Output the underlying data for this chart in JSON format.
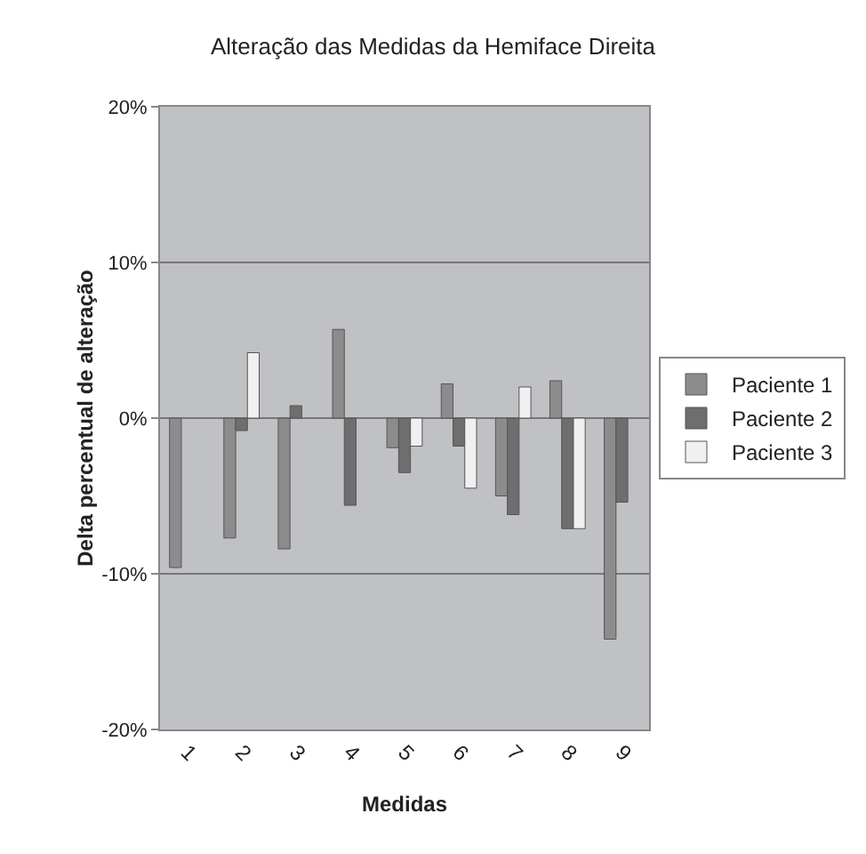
{
  "chart_data": {
    "type": "bar",
    "title": "Alteração das Medidas da Hemiface Direita",
    "xlabel": "Medidas",
    "ylabel": "Delta percentual de alteração",
    "categories": [
      "1",
      "2",
      "3",
      "4",
      "5",
      "6",
      "7",
      "8",
      "9"
    ],
    "series": [
      {
        "name": "Paciente 1",
        "color": "#8c8c8c",
        "values": [
          -9.6,
          -7.7,
          -8.4,
          5.7,
          -1.9,
          2.2,
          -5.0,
          2.4,
          -14.2
        ]
      },
      {
        "name": "Paciente 2",
        "color": "#6e6e6e",
        "values": [
          null,
          -0.8,
          0.8,
          -5.6,
          -3.5,
          -1.8,
          -6.2,
          -7.1,
          -5.4
        ]
      },
      {
        "name": "Paciente 3",
        "color": "#f0f0f0",
        "values": [
          null,
          4.2,
          null,
          null,
          -1.8,
          -4.5,
          2.0,
          -7.1,
          null
        ]
      }
    ],
    "ylim": [
      -20,
      20
    ],
    "yticks": [
      {
        "value": -20,
        "label": "-20%"
      },
      {
        "value": -10,
        "label": "-10%"
      },
      {
        "value": 0,
        "label": "0%"
      },
      {
        "value": 10,
        "label": "10%"
      },
      {
        "value": 20,
        "label": "20%"
      }
    ],
    "grid": "y",
    "legend": "right"
  }
}
